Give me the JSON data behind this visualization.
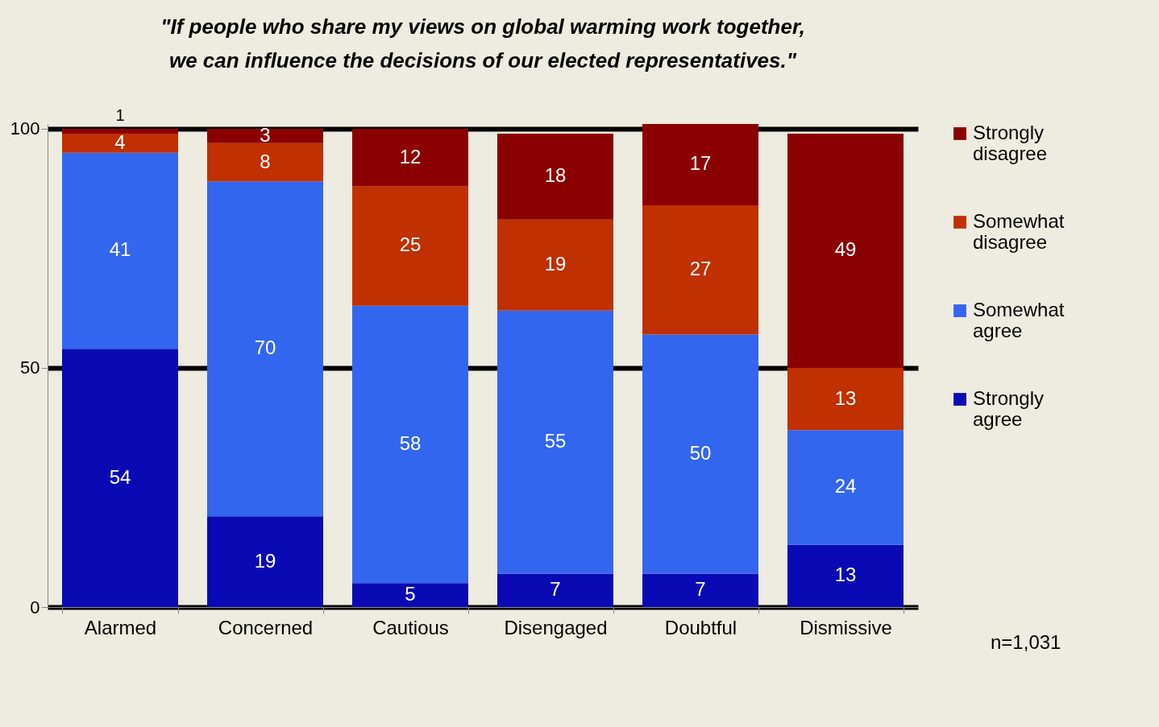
{
  "chart_data": {
    "type": "bar",
    "title": "\"If people who share my views on global warming work together, we can influence the decisions of our elected representatives.\"",
    "categories": [
      "Alarmed",
      "Concerned",
      "Cautious",
      "Disengaged",
      "Doubtful",
      "Dismissive"
    ],
    "series": [
      {
        "name": "Strongly agree",
        "color": "#0a0ab4",
        "values": [
          54,
          19,
          5,
          7,
          7,
          13
        ]
      },
      {
        "name": "Somewhat agree",
        "color": "#3366ee",
        "values": [
          41,
          70,
          58,
          55,
          50,
          24
        ]
      },
      {
        "name": "Somewhat disagree",
        "color": "#c03000",
        "values": [
          4,
          8,
          25,
          19,
          27,
          13
        ]
      },
      {
        "name": "Strongly disagree",
        "color": "#8b0000",
        "values": [
          1,
          3,
          12,
          18,
          17,
          49
        ]
      }
    ],
    "stacked": true,
    "data_labels": true,
    "ylim": [
      0,
      101
    ],
    "yticks": [
      0,
      50,
      100
    ],
    "grid": "y",
    "legend": "right",
    "annotations": [
      "n=1,031"
    ]
  }
}
